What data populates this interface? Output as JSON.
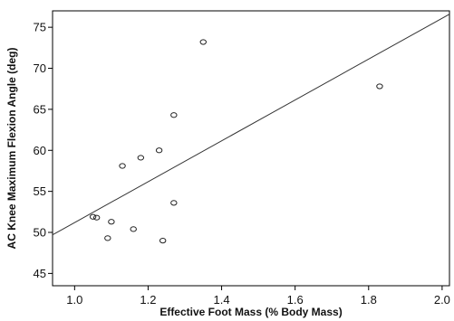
{
  "chart_data": {
    "type": "scatter",
    "title": "",
    "xlabel": "Effective Foot Mass (% Body Mass)",
    "ylabel": "AC Knee Maximum Flexion Angle (deg)",
    "xlim": [
      0.94,
      2.02
    ],
    "ylim": [
      43.5,
      77.0
    ],
    "xticks": [
      1.0,
      1.2,
      1.4,
      1.6,
      1.8,
      2.0
    ],
    "xtick_labels": [
      "1.0",
      "1.2",
      "1.4",
      "1.6",
      "1.8",
      "2.0"
    ],
    "yticks": [
      45,
      50,
      55,
      60,
      65,
      70,
      75
    ],
    "ytick_labels": [
      "45",
      "50",
      "55",
      "60",
      "65",
      "70",
      "75"
    ],
    "grid": false,
    "points": [
      {
        "x": 1.05,
        "y": 51.9
      },
      {
        "x": 1.06,
        "y": 51.8
      },
      {
        "x": 1.09,
        "y": 49.3
      },
      {
        "x": 1.1,
        "y": 51.3
      },
      {
        "x": 1.13,
        "y": 58.1
      },
      {
        "x": 1.16,
        "y": 50.4
      },
      {
        "x": 1.18,
        "y": 59.1
      },
      {
        "x": 1.23,
        "y": 60.0
      },
      {
        "x": 1.24,
        "y": 49.0
      },
      {
        "x": 1.27,
        "y": 53.6
      },
      {
        "x": 1.27,
        "y": 64.3
      },
      {
        "x": 1.35,
        "y": 73.2
      },
      {
        "x": 1.83,
        "y": 67.8
      }
    ],
    "fit_line": {
      "x": [
        0.94,
        2.02
      ],
      "y": [
        49.7,
        76.6
      ]
    },
    "colors": {
      "marker_stroke": "#222222",
      "fit_line": "#333333",
      "axis": "#000000"
    }
  }
}
